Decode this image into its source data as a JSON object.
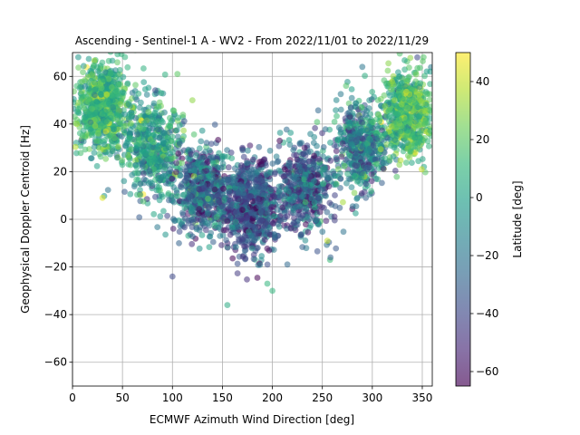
{
  "chart_data": {
    "type": "scatter",
    "title": "Ascending - Sentinel-1 A - WV2 - From 2022/11/01 to 2022/11/29",
    "xlabel": "ECMWF Azimuth Wind Direction [deg]",
    "ylabel": "Geophysical Doppler Centroid [Hz]",
    "xlim": [
      0,
      360
    ],
    "ylim": [
      -70,
      70
    ],
    "xticks": [
      0,
      50,
      100,
      150,
      200,
      250,
      300,
      350
    ],
    "yticks": [
      -60,
      -40,
      -20,
      0,
      20,
      40,
      60
    ],
    "grid": true,
    "point_alpha": 0.55,
    "colorbar": {
      "label": "Latitude [deg]",
      "range": [
        -65,
        50
      ],
      "ticks": [
        -60,
        -40,
        -20,
        0,
        20,
        40
      ],
      "colormap": "viridis",
      "colors": [
        "#440154",
        "#482878",
        "#3e4989",
        "#31688e",
        "#26828e",
        "#1f9e89",
        "#35b779",
        "#6ece58",
        "#b5de2b",
        "#fde725"
      ]
    },
    "clusters": [
      {
        "x_center": 30,
        "x_spread": 22,
        "y_center": 48,
        "y_spread": 12,
        "lat_center": 10,
        "lat_spread": 18,
        "count": 700
      },
      {
        "x_center": 80,
        "x_spread": 25,
        "y_center": 30,
        "y_spread": 12,
        "lat_center": 0,
        "lat_spread": 25,
        "count": 500
      },
      {
        "x_center": 130,
        "x_spread": 28,
        "y_center": 12,
        "y_spread": 11,
        "lat_center": -25,
        "lat_spread": 30,
        "count": 600
      },
      {
        "x_center": 180,
        "x_spread": 25,
        "y_center": 5,
        "y_spread": 12,
        "lat_center": -35,
        "lat_spread": 25,
        "count": 700
      },
      {
        "x_center": 235,
        "x_spread": 25,
        "y_center": 14,
        "y_spread": 12,
        "lat_center": -30,
        "lat_spread": 28,
        "count": 500
      },
      {
        "x_center": 290,
        "x_spread": 22,
        "y_center": 32,
        "y_spread": 12,
        "lat_center": -15,
        "lat_spread": 30,
        "count": 500
      },
      {
        "x_center": 335,
        "x_spread": 20,
        "y_center": 45,
        "y_spread": 11,
        "lat_center": 15,
        "lat_spread": 20,
        "count": 650
      }
    ],
    "outliers": [
      {
        "x": 155,
        "y": -36,
        "lat": 5
      },
      {
        "x": 200,
        "y": -30,
        "lat": 10
      },
      {
        "x": 195,
        "y": -27,
        "lat": 10
      },
      {
        "x": 100,
        "y": -24,
        "lat": -40
      },
      {
        "x": 255,
        "y": -9,
        "lat": 40
      },
      {
        "x": 30,
        "y": 9,
        "lat": 45
      },
      {
        "x": 345,
        "y": 68,
        "lat": -40
      },
      {
        "x": 290,
        "y": 64,
        "lat": -20
      },
      {
        "x": 120,
        "y": 50,
        "lat": 30
      },
      {
        "x": 105,
        "y": 61,
        "lat": 20
      }
    ]
  }
}
